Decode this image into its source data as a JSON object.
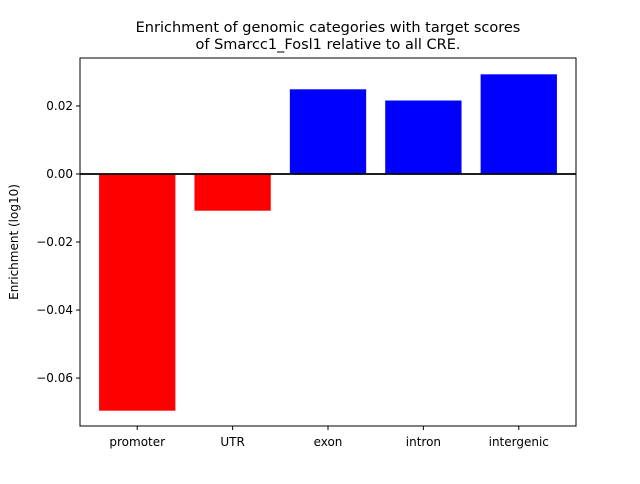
{
  "chart_data": {
    "type": "bar",
    "title": "Enrichment of genomic categories with target scores\nof Smarcc1_Fosl1 relative to all CRE.",
    "title_lines": [
      "Enrichment of genomic categories with target scores",
      "of Smarcc1_Fosl1 relative to all CRE."
    ],
    "xlabel": "",
    "ylabel": "Enrichment (log10)",
    "categories": [
      "promoter",
      "UTR",
      "exon",
      "intron",
      "intergenic"
    ],
    "values": [
      -0.0696,
      -0.0108,
      0.0249,
      0.0216,
      0.0293
    ],
    "colors": [
      "#ff0000",
      "#ff0000",
      "#0000ff",
      "#0000ff",
      "#0000ff"
    ],
    "ylim": [
      -0.0741,
      0.0341
    ],
    "yticks": [
      -0.06,
      -0.04,
      -0.02,
      0.0,
      0.02
    ],
    "ytick_labels": [
      "−0.06",
      "−0.04",
      "−0.02",
      "0.00",
      "0.02"
    ],
    "grid": false,
    "zero_line": true
  }
}
